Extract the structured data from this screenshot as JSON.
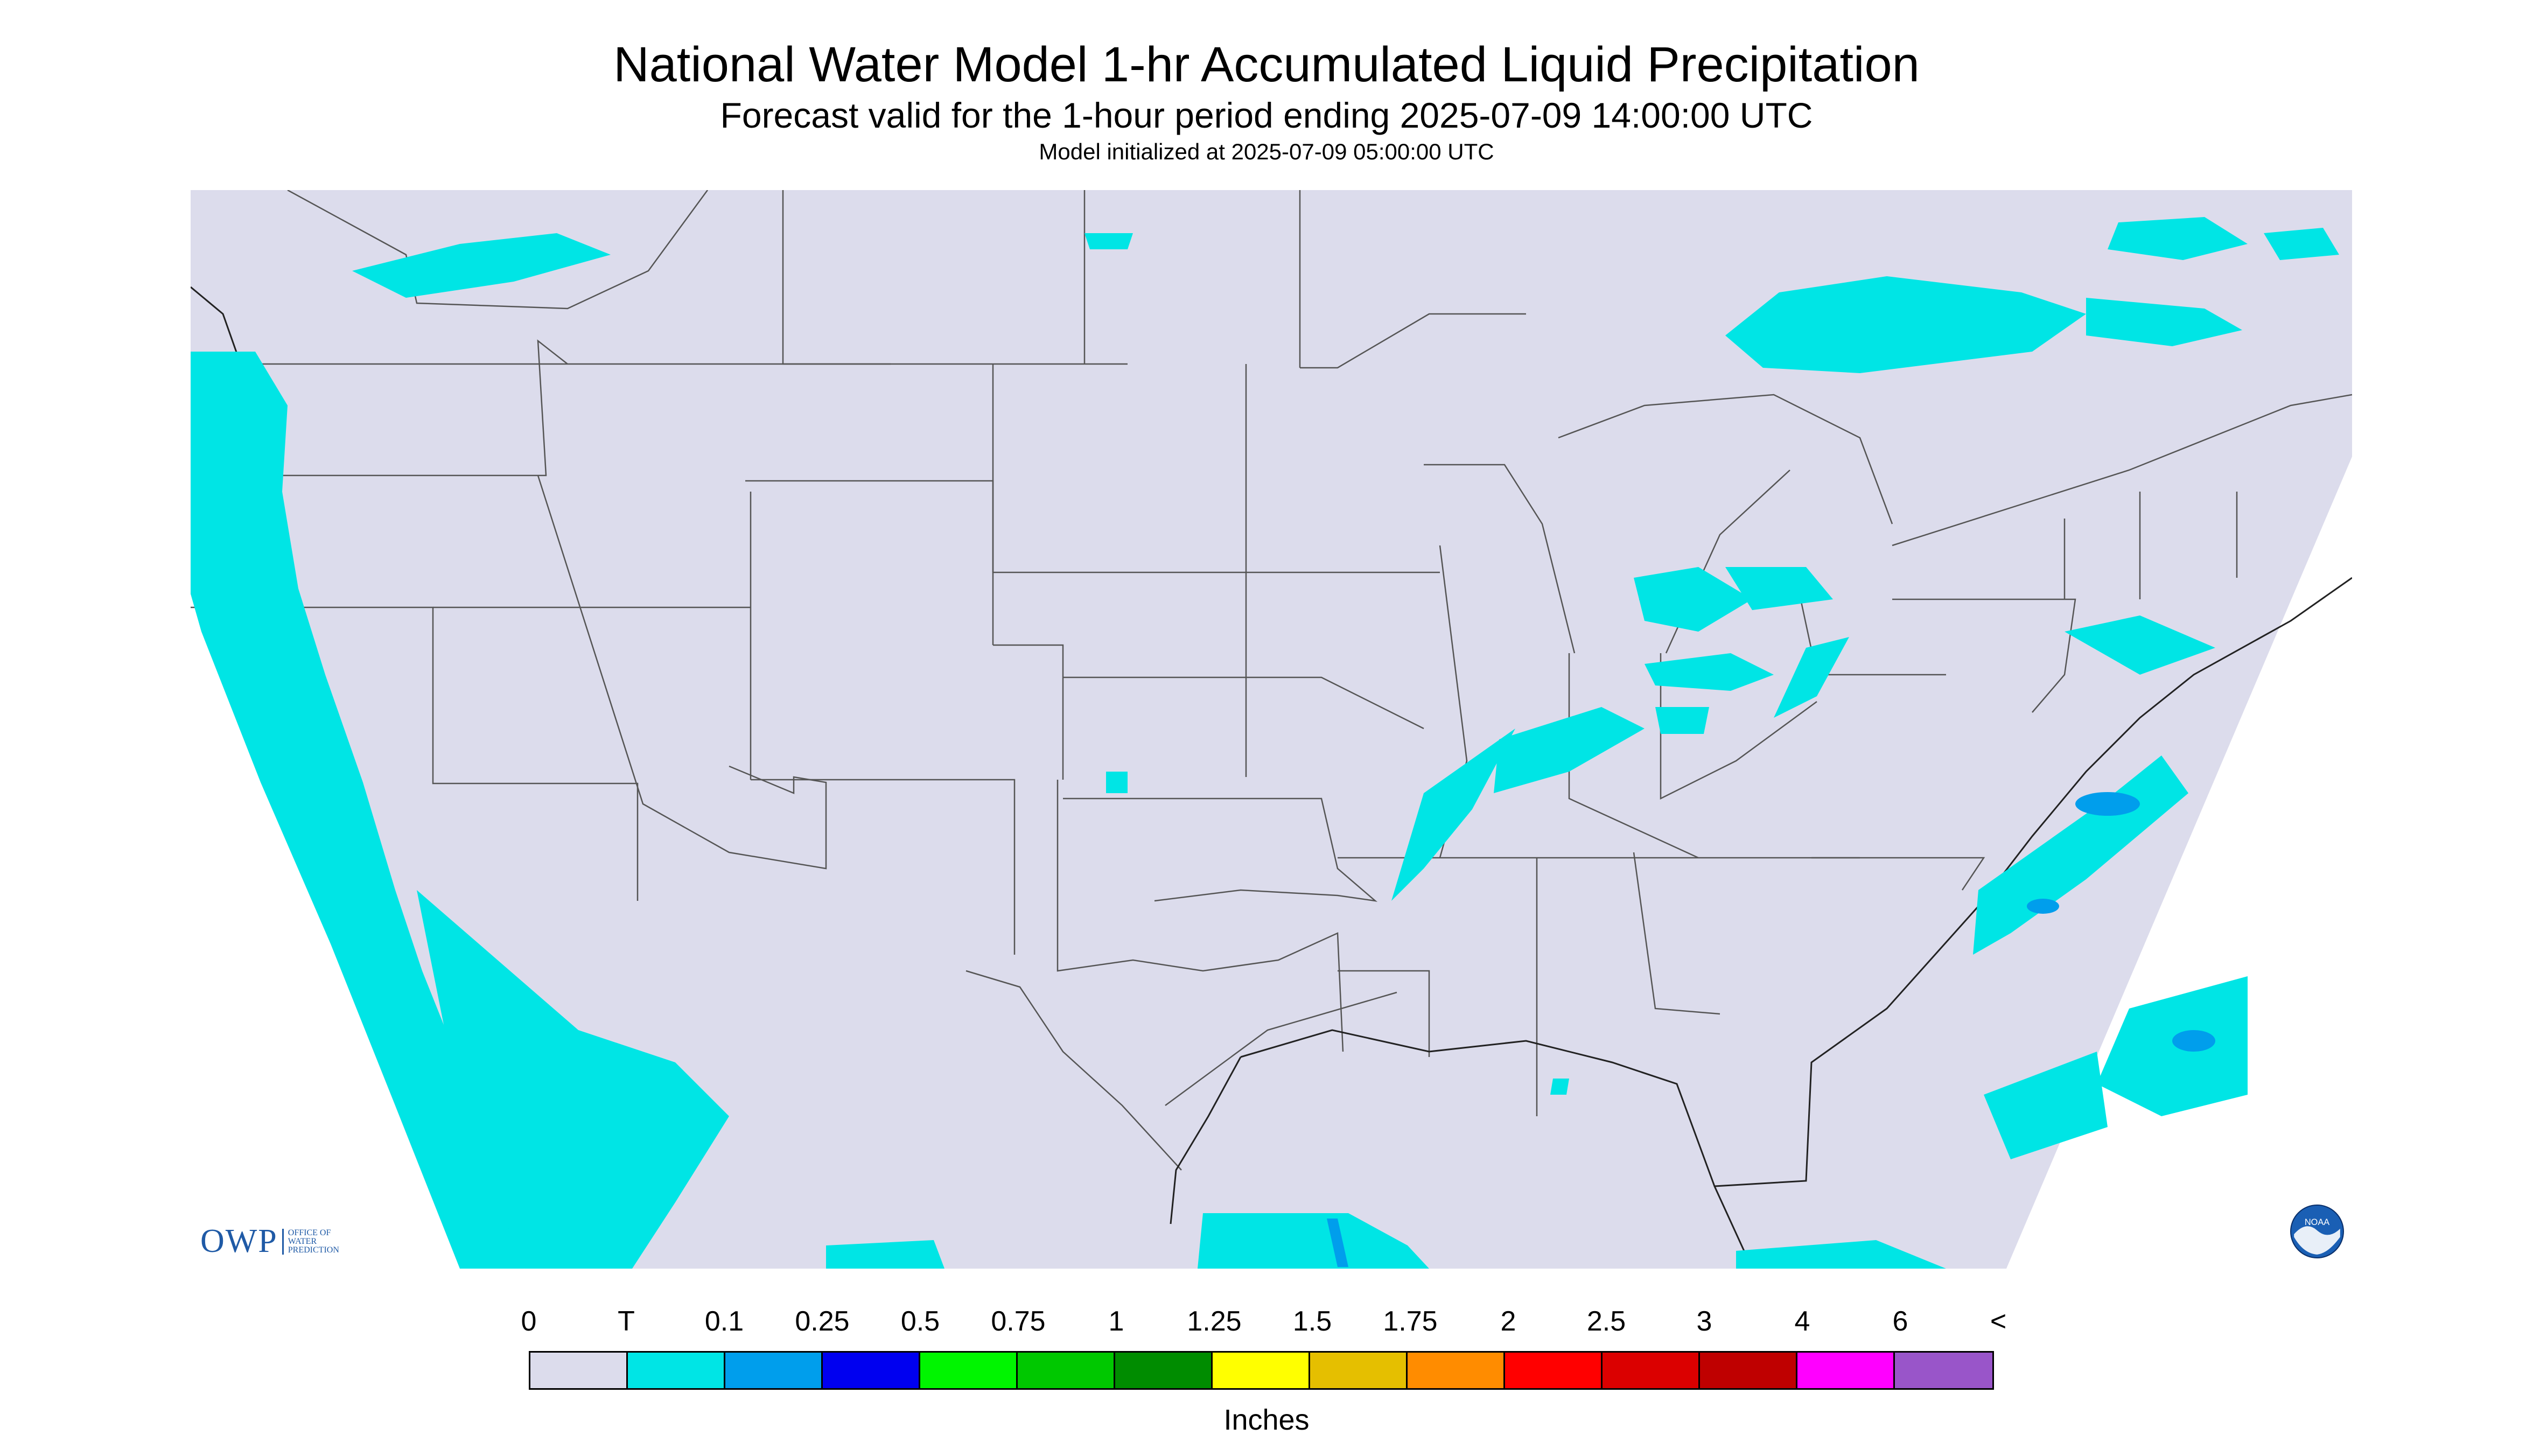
{
  "header": {
    "title": "National Water Model 1-hr Accumulated Liquid Precipitation",
    "subtitle": "Forecast valid for the 1-hour period ending 2025-07-09 14:00:00 UTC",
    "init_line": "Model initialized at 2025-07-09 05:00:00 UTC"
  },
  "legend": {
    "labels": [
      "0",
      "T",
      "0.1",
      "0.25",
      "0.5",
      "0.75",
      "1",
      "1.25",
      "1.5",
      "1.75",
      "2",
      "2.5",
      "3",
      "4",
      "6",
      "<"
    ],
    "colors": [
      "#dcdcec",
      "#00e5e5",
      "#009eec",
      "#0000f0",
      "#00f500",
      "#00c800",
      "#008c00",
      "#ffff00",
      "#e5bf00",
      "#ff8c00",
      "#ff0000",
      "#db0000",
      "#bf0000",
      "#ff00ff",
      "#9955c9"
    ],
    "units": "Inches"
  },
  "logos": {
    "owp_mark": "OWP",
    "owp_text": "OFFICE OF\nWATER\nPREDICTION",
    "noaa_text": "NOAA"
  },
  "map": {
    "background_color": "#dcdcec",
    "precip_color": "#00e5e5",
    "heavier_precip_color": "#009eec",
    "border_color": "#555555"
  }
}
